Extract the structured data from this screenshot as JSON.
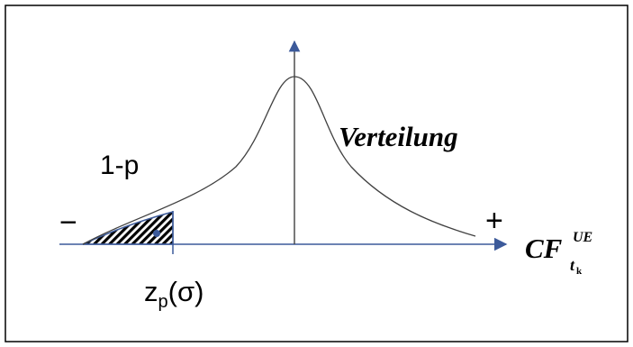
{
  "diagram": {
    "distribution_label": "Verteilung",
    "tail_label": "1-p",
    "quantile_label": {
      "main": "z",
      "subscript": "p",
      "argument": "(σ)"
    },
    "minus_sign": "−",
    "plus_sign": "+",
    "axis_label": {
      "main": "CF",
      "subscript": "t",
      "sub_subscript": "k",
      "superscript": "UE"
    },
    "colors": {
      "stroke": "#3c5a9a",
      "curve": "#404040",
      "text": "#000000",
      "frame": "#000000"
    }
  }
}
